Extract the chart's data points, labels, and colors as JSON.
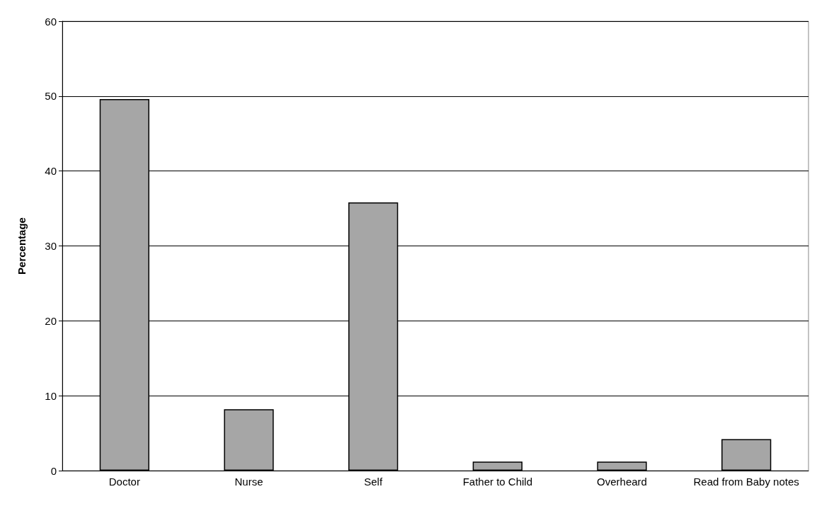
{
  "chart_data": {
    "type": "bar",
    "ylabel": "Percentage",
    "categories": [
      "Doctor",
      "Nurse",
      "Self",
      "Father to Child",
      "Overheard",
      "Read from Baby notes"
    ],
    "values": [
      49.6,
      8.2,
      35.8,
      1.2,
      1.2,
      4.2
    ],
    "color": "#a6a6a6",
    "ylim": [
      0,
      60
    ],
    "yticks": [
      0,
      10,
      20,
      30,
      40,
      50,
      60
    ],
    "grid": "y"
  }
}
